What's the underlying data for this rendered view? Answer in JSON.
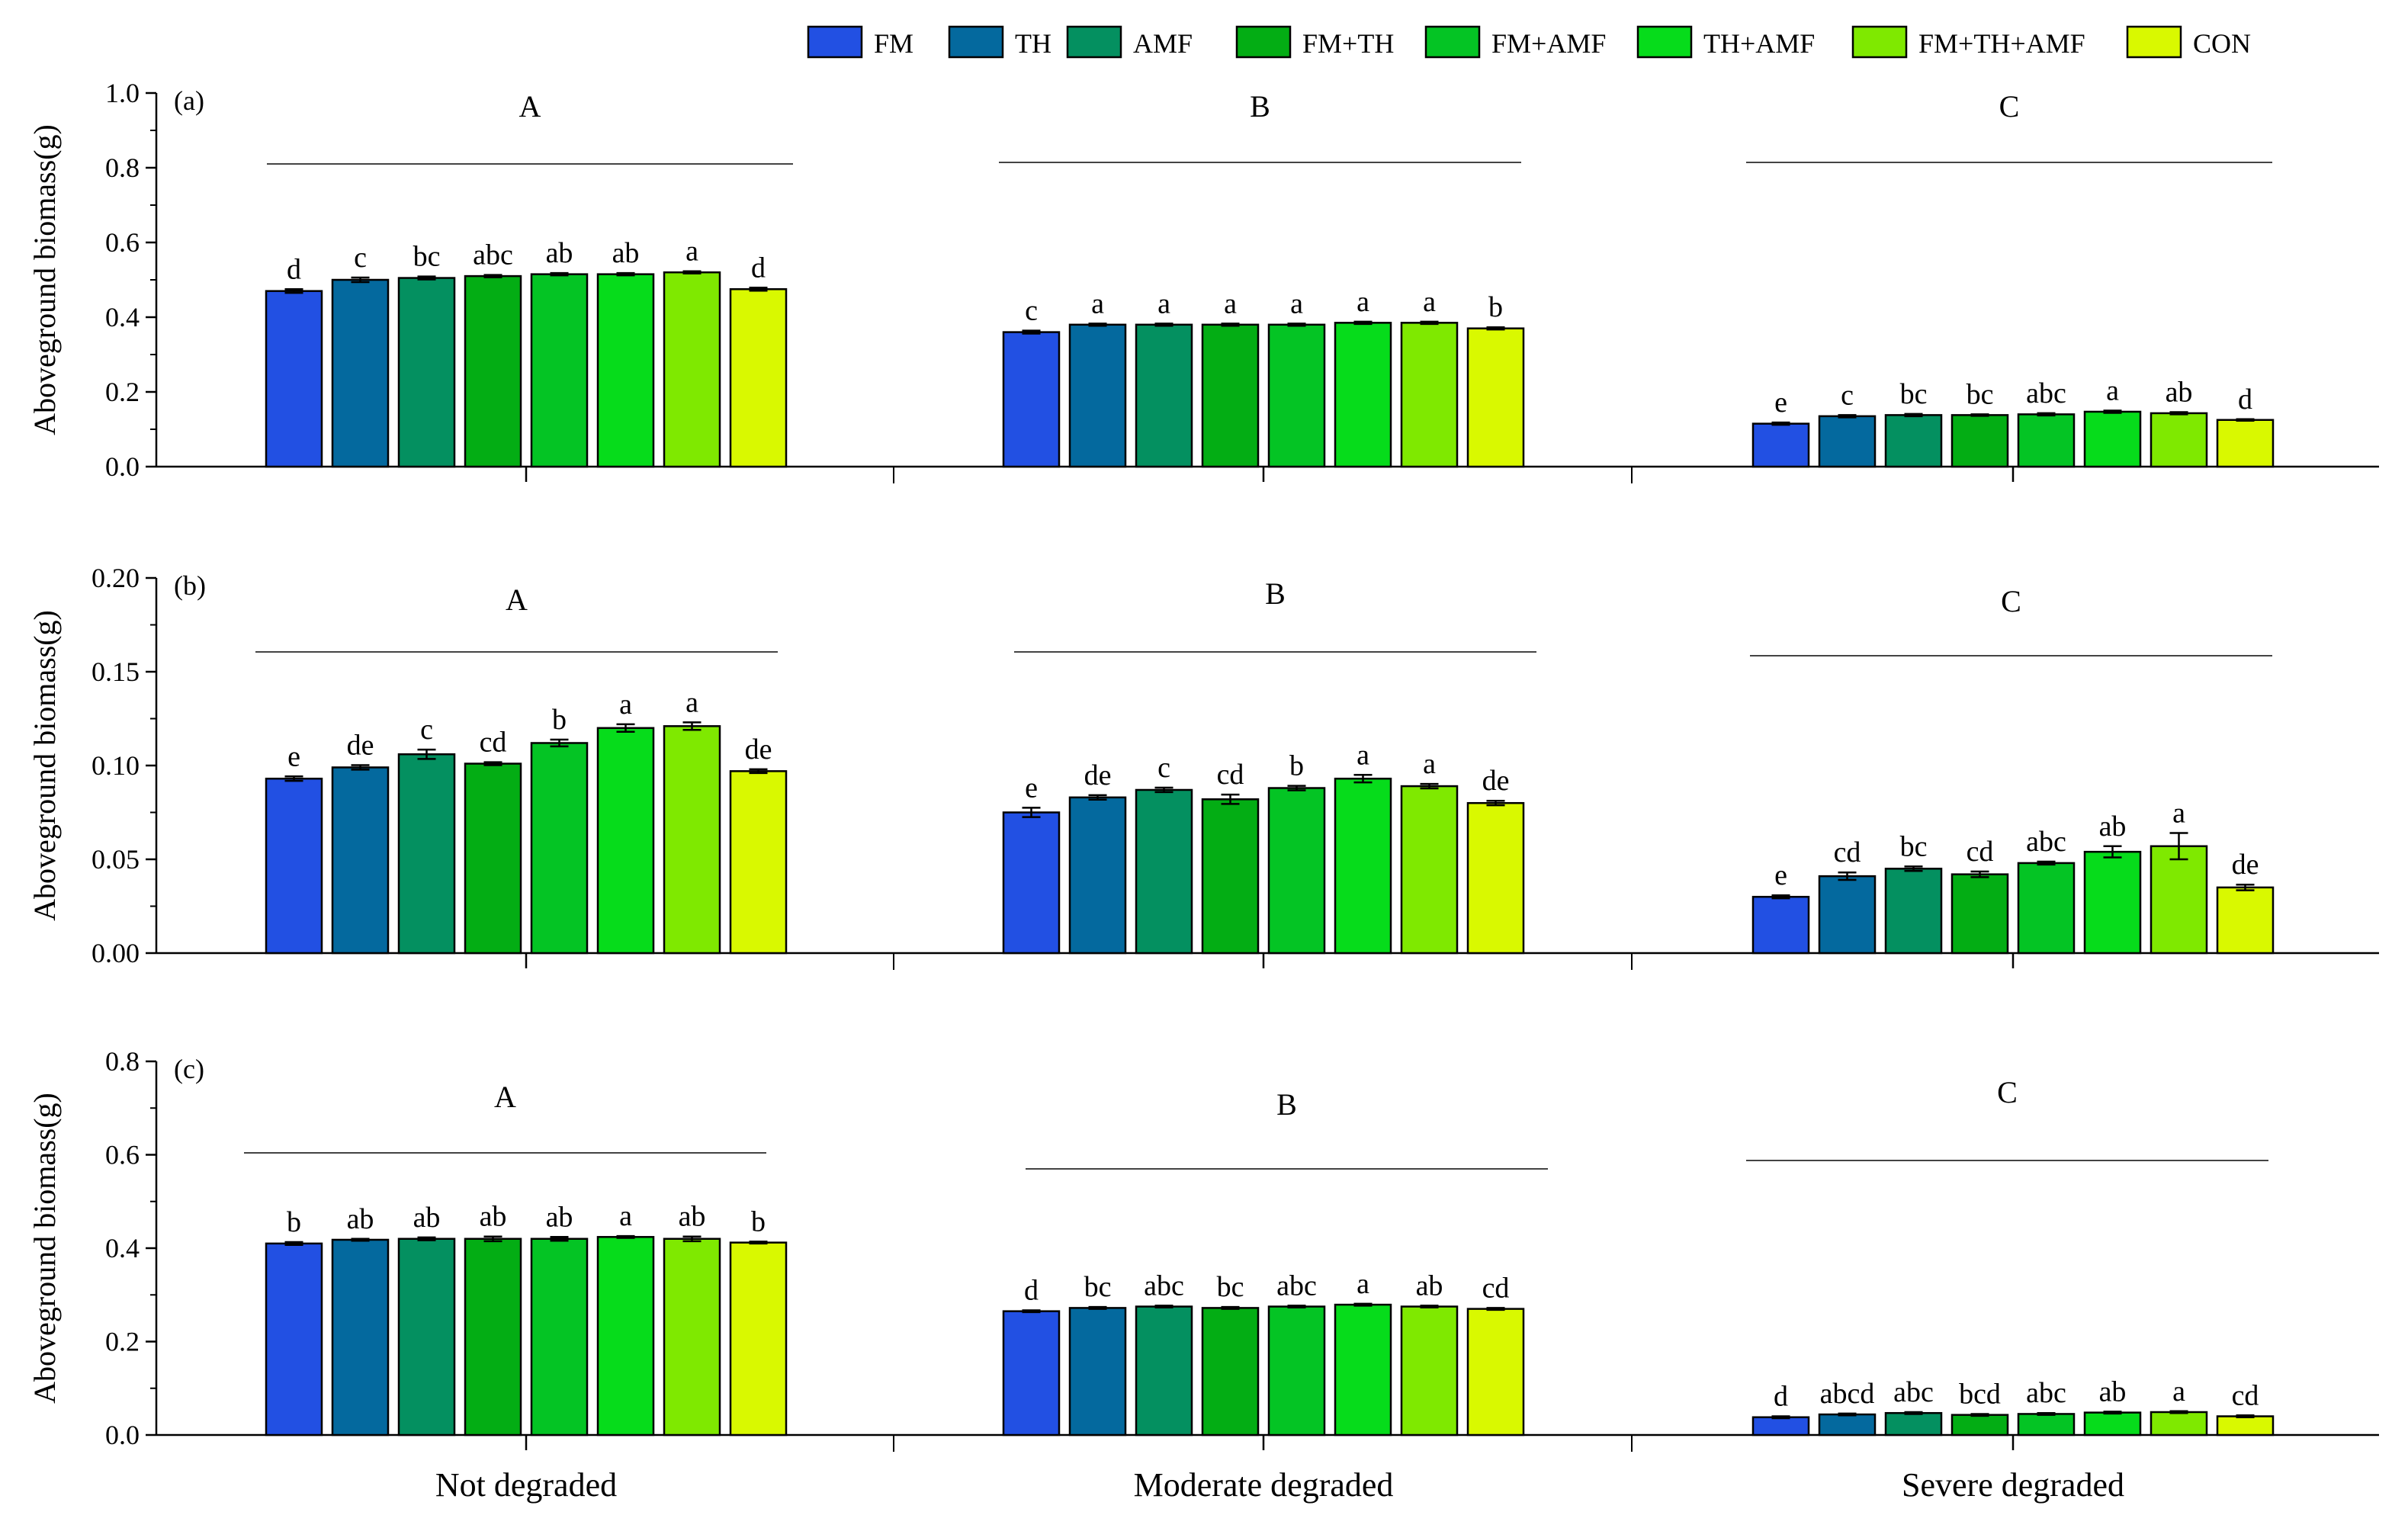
{
  "legend": {
    "items": [
      {
        "label": "FM",
        "color": "#2250e3"
      },
      {
        "label": "TH",
        "color": "#04699e"
      },
      {
        "label": "AMF",
        "color": "#049060"
      },
      {
        "label": "FM+TH",
        "color": "#03ad14"
      },
      {
        "label": "FM+AMF",
        "color": "#04c424"
      },
      {
        "label": "TH+AMF",
        "color": "#06dc1b"
      },
      {
        "label": "FM+TH+AMF",
        "color": "#7fe900"
      },
      {
        "label": "CON",
        "color": "#d9f900"
      }
    ]
  },
  "x_categories": [
    "Not degraded",
    "Moderate degraded",
    "Severe degraded"
  ],
  "chart_data": [
    {
      "type": "bar",
      "panel": "(a)",
      "ylabel": "Aboveground biomass(g)",
      "ylim": [
        0,
        1.0
      ],
      "yticks": [
        "0.0",
        "0.2",
        "0.4",
        "0.6",
        "0.8",
        "1.0"
      ],
      "categories": [
        "Not degraded",
        "Moderate degraded",
        "Severe degraded"
      ],
      "group_letters": [
        "A",
        "B",
        "C"
      ],
      "series": [
        {
          "name": "FM",
          "values": [
            0.47,
            0.36,
            0.115
          ],
          "errors": [
            0.005,
            0.004,
            0.003
          ],
          "letters": [
            "d",
            "c",
            "e"
          ]
        },
        {
          "name": "TH",
          "values": [
            0.5,
            0.38,
            0.135
          ],
          "errors": [
            0.006,
            0.003,
            0.003
          ],
          "letters": [
            "c",
            "a",
            "c"
          ]
        },
        {
          "name": "AMF",
          "values": [
            0.505,
            0.38,
            0.138
          ],
          "errors": [
            0.004,
            0.003,
            0.003
          ],
          "letters": [
            "bc",
            "a",
            "bc"
          ]
        },
        {
          "name": "FM+TH",
          "values": [
            0.51,
            0.38,
            0.138
          ],
          "errors": [
            0.003,
            0.003,
            0.002
          ],
          "letters": [
            "abc",
            "a",
            "bc"
          ]
        },
        {
          "name": "FM+AMF",
          "values": [
            0.515,
            0.38,
            0.14
          ],
          "errors": [
            0.003,
            0.003,
            0.003
          ],
          "letters": [
            "ab",
            "a",
            "abc"
          ]
        },
        {
          "name": "TH+AMF",
          "values": [
            0.515,
            0.385,
            0.147
          ],
          "errors": [
            0.003,
            0.003,
            0.003
          ],
          "letters": [
            "ab",
            "a",
            "a"
          ]
        },
        {
          "name": "FM+TH+AMF",
          "values": [
            0.52,
            0.385,
            0.143
          ],
          "errors": [
            0.003,
            0.003,
            0.003
          ],
          "letters": [
            "a",
            "a",
            "ab"
          ]
        },
        {
          "name": "CON",
          "values": [
            0.475,
            0.37,
            0.125
          ],
          "errors": [
            0.004,
            0.003,
            0.002
          ],
          "letters": [
            "d",
            "b",
            "d"
          ]
        }
      ]
    },
    {
      "type": "bar",
      "panel": "(b)",
      "ylabel": "Aboveground biomass(g)",
      "ylim": [
        0,
        0.2
      ],
      "yticks": [
        "0.00",
        "0.05",
        "0.10",
        "0.15",
        "0.20"
      ],
      "categories": [
        "Not degraded",
        "Moderate degraded",
        "Severe degraded"
      ],
      "group_letters": [
        "A",
        "B",
        "C"
      ],
      "series": [
        {
          "name": "FM",
          "values": [
            0.093,
            0.075,
            0.03
          ],
          "errors": [
            0.0012,
            0.0025,
            0.0008
          ],
          "letters": [
            "e",
            "e",
            "e"
          ]
        },
        {
          "name": "TH",
          "values": [
            0.099,
            0.083,
            0.041
          ],
          "errors": [
            0.0012,
            0.0012,
            0.002
          ],
          "letters": [
            "de",
            "de",
            "cd"
          ]
        },
        {
          "name": "AMF",
          "values": [
            0.106,
            0.087,
            0.045
          ],
          "errors": [
            0.0025,
            0.0012,
            0.0012
          ],
          "letters": [
            "c",
            "c",
            "bc"
          ]
        },
        {
          "name": "FM+TH",
          "values": [
            0.101,
            0.082,
            0.042
          ],
          "errors": [
            0.0008,
            0.0025,
            0.0015
          ],
          "letters": [
            "cd",
            "cd",
            "cd"
          ]
        },
        {
          "name": "FM+AMF",
          "values": [
            0.112,
            0.088,
            0.048
          ],
          "errors": [
            0.0018,
            0.0012,
            0.0008
          ],
          "letters": [
            "b",
            "b",
            "abc"
          ]
        },
        {
          "name": "TH+AMF",
          "values": [
            0.12,
            0.093,
            0.054
          ],
          "errors": [
            0.002,
            0.002,
            0.003
          ],
          "letters": [
            "a",
            "a",
            "ab"
          ]
        },
        {
          "name": "FM+TH+AMF",
          "values": [
            0.121,
            0.089,
            0.057
          ],
          "errors": [
            0.002,
            0.0012,
            0.007
          ],
          "letters": [
            "a",
            "a",
            "a"
          ]
        },
        {
          "name": "CON",
          "values": [
            0.097,
            0.08,
            0.035
          ],
          "errors": [
            0.001,
            0.0012,
            0.0015
          ],
          "letters": [
            "de",
            "de",
            "de"
          ]
        }
      ]
    },
    {
      "type": "bar",
      "panel": "(c)",
      "ylabel": "Aboveground biomass(g)",
      "ylim": [
        0,
        0.8
      ],
      "yticks": [
        "0.0",
        "0.2",
        "0.4",
        "0.6",
        "0.8"
      ],
      "categories": [
        "Not degraded",
        "Moderate degraded",
        "Severe degraded"
      ],
      "group_letters": [
        "A",
        "B",
        "C"
      ],
      "series": [
        {
          "name": "FM",
          "values": [
            0.41,
            0.265,
            0.038
          ],
          "errors": [
            0.003,
            0.002,
            0.002
          ],
          "letters": [
            "b",
            "d",
            "d"
          ]
        },
        {
          "name": "TH",
          "values": [
            0.418,
            0.272,
            0.044
          ],
          "errors": [
            0.002,
            0.002,
            0.002
          ],
          "letters": [
            "ab",
            "bc",
            "abcd"
          ]
        },
        {
          "name": "AMF",
          "values": [
            0.42,
            0.275,
            0.047
          ],
          "errors": [
            0.003,
            0.002,
            0.002
          ],
          "letters": [
            "ab",
            "abc",
            "abc"
          ]
        },
        {
          "name": "FM+TH",
          "values": [
            0.42,
            0.272,
            0.043
          ],
          "errors": [
            0.005,
            0.002,
            0.002
          ],
          "letters": [
            "ab",
            "bc",
            "bcd"
          ]
        },
        {
          "name": "FM+AMF",
          "values": [
            0.42,
            0.275,
            0.045
          ],
          "errors": [
            0.004,
            0.002,
            0.002
          ],
          "letters": [
            "ab",
            "abc",
            "abc"
          ]
        },
        {
          "name": "TH+AMF",
          "values": [
            0.424,
            0.279,
            0.048
          ],
          "errors": [
            0.002,
            0.002,
            0.002
          ],
          "letters": [
            "a",
            "a",
            "ab"
          ]
        },
        {
          "name": "FM+TH+AMF",
          "values": [
            0.42,
            0.275,
            0.049
          ],
          "errors": [
            0.005,
            0.002,
            0.002
          ],
          "letters": [
            "ab",
            "ab",
            "a"
          ]
        },
        {
          "name": "CON",
          "values": [
            0.412,
            0.27,
            0.04
          ],
          "errors": [
            0.002,
            0.002,
            0.002
          ],
          "letters": [
            "b",
            "cd",
            "cd"
          ]
        }
      ]
    }
  ]
}
